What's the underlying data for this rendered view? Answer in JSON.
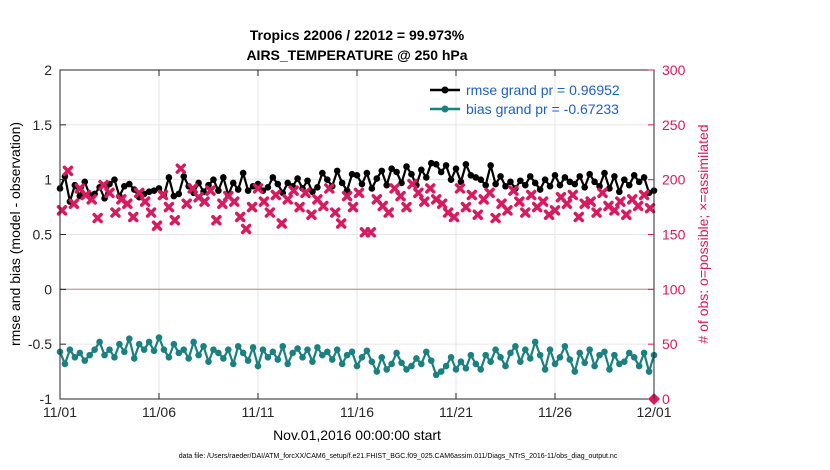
{
  "chart_data": {
    "type": "line",
    "title": "Tropics 22006 / 22012 = 99.973%",
    "subtitle": "AIRS_TEMPERATURE @ 250 hPa",
    "xlabel": "Nov.01,2016 00:00:00 start",
    "ylabel": "rmse and bias (model - observation)",
    "ylabel_right": "# of obs: o=possible; ×=assimilated",
    "x_tick_labels": [
      "11/01",
      "11/06",
      "11/11",
      "11/16",
      "11/21",
      "11/26",
      "12/01"
    ],
    "x_tick_values": [
      0,
      5,
      10,
      15,
      20,
      25,
      30
    ],
    "xlim": [
      0,
      30
    ],
    "ylim": [
      -1,
      2
    ],
    "y_ticks": [
      -1,
      -0.5,
      0,
      0.5,
      1,
      1.5,
      2
    ],
    "y_tick_labels": [
      "-1",
      "-0.5",
      "0",
      "0.5",
      "1",
      "1.5",
      "2"
    ],
    "ylim_right": [
      0,
      300
    ],
    "y2_ticks": [
      0,
      50,
      100,
      150,
      200,
      250,
      300
    ],
    "y2_tick_labels": [
      "0",
      "50",
      "100",
      "150",
      "200",
      "250",
      "300"
    ],
    "series": [
      {
        "name": "rmse",
        "legend": "rmse grand pr = 0.96952",
        "color": "#000000",
        "axis": "left",
        "x": [
          0,
          0.25,
          0.5,
          0.75,
          1,
          1.25,
          1.5,
          1.75,
          2,
          2.25,
          2.5,
          2.75,
          3,
          3.25,
          3.5,
          3.75,
          4,
          4.25,
          4.5,
          4.75,
          5,
          5.25,
          5.5,
          5.75,
          6,
          6.25,
          6.5,
          6.75,
          7,
          7.25,
          7.5,
          7.75,
          8,
          8.25,
          8.5,
          8.75,
          9,
          9.25,
          9.5,
          9.75,
          10,
          10.25,
          10.5,
          10.75,
          11,
          11.25,
          11.5,
          11.75,
          12,
          12.25,
          12.5,
          12.75,
          13,
          13.25,
          13.5,
          13.75,
          14,
          14.25,
          14.5,
          14.75,
          15,
          15.25,
          15.5,
          15.75,
          16,
          16.25,
          16.5,
          16.75,
          17,
          17.25,
          17.5,
          17.75,
          18,
          18.25,
          18.5,
          18.75,
          19,
          19.25,
          19.5,
          19.75,
          20,
          20.25,
          20.5,
          20.75,
          21,
          21.25,
          21.5,
          21.75,
          22,
          22.25,
          22.5,
          22.75,
          23,
          23.25,
          23.5,
          23.75,
          24,
          24.25,
          24.5,
          24.75,
          25,
          25.25,
          25.5,
          25.75,
          26,
          26.25,
          26.5,
          26.75,
          27,
          27.25,
          27.5,
          27.75,
          28,
          28.25,
          28.5,
          28.75,
          29,
          29.25,
          29.5,
          29.75,
          30
        ],
        "values": [
          0.92,
          1.03,
          0.8,
          0.95,
          0.85,
          0.98,
          0.86,
          0.87,
          0.93,
          0.83,
          0.96,
          1.0,
          0.85,
          0.94,
          0.96,
          0.91,
          0.84,
          0.87,
          0.89,
          0.9,
          0.92,
          0.86,
          1.02,
          0.85,
          0.87,
          1.03,
          0.94,
          0.88,
          0.97,
          0.89,
          0.95,
          1.0,
          0.9,
          1.02,
          0.86,
          0.97,
          0.91,
          1.06,
          0.9,
          0.94,
          0.96,
          0.9,
          0.93,
          1.02,
          0.96,
          0.88,
          0.97,
          0.94,
          1.01,
          0.92,
          0.99,
          0.89,
          0.93,
          1.06,
          1.0,
          0.94,
          1.08,
          0.97,
          0.9,
          1.05,
          1.04,
          0.96,
          1.06,
          0.92,
          1.01,
          1.08,
          0.95,
          1.1,
          1.07,
          0.97,
          1.12,
          1.05,
          0.95,
          1.09,
          1.02,
          1.15,
          1.14,
          1.07,
          1.13,
          1.0,
          1.1,
          0.98,
          1.14,
          1.04,
          1.02,
          1.0,
          0.95,
          1.13,
          0.96,
          1.03,
          0.94,
          0.98,
          0.92,
          0.99,
          0.95,
          1.03,
          0.97,
          0.91,
          1.0,
          0.94,
          1.04,
          0.95,
          1.02,
          0.98,
          0.96,
          1.03,
          0.93,
          1.05,
          0.98,
          0.94,
          1.06,
          0.92,
          1.03,
          0.89,
          1.0,
          0.95,
          1.04,
          0.98,
          1.02,
          0.88,
          0.9
        ],
        "marker": "filled-circle"
      },
      {
        "name": "bias",
        "legend": "bias grand pr = -0.67233",
        "color": "#1a8080",
        "axis": "left",
        "x": [
          0,
          0.25,
          0.5,
          0.75,
          1,
          1.25,
          1.5,
          1.75,
          2,
          2.25,
          2.5,
          2.75,
          3,
          3.25,
          3.5,
          3.75,
          4,
          4.25,
          4.5,
          4.75,
          5,
          5.25,
          5.5,
          5.75,
          6,
          6.25,
          6.5,
          6.75,
          7,
          7.25,
          7.5,
          7.75,
          8,
          8.25,
          8.5,
          8.75,
          9,
          9.25,
          9.5,
          9.75,
          10,
          10.25,
          10.5,
          10.75,
          11,
          11.25,
          11.5,
          11.75,
          12,
          12.25,
          12.5,
          12.75,
          13,
          13.25,
          13.5,
          13.75,
          14,
          14.25,
          14.5,
          14.75,
          15,
          15.25,
          15.5,
          15.75,
          16,
          16.25,
          16.5,
          16.75,
          17,
          17.25,
          17.5,
          17.75,
          18,
          18.25,
          18.5,
          18.75,
          19,
          19.25,
          19.5,
          19.75,
          20,
          20.25,
          20.5,
          20.75,
          21,
          21.25,
          21.5,
          21.75,
          22,
          22.25,
          22.5,
          22.75,
          23,
          23.25,
          23.5,
          23.75,
          24,
          24.25,
          24.5,
          24.75,
          25,
          25.25,
          25.5,
          25.75,
          26,
          26.25,
          26.5,
          26.75,
          27,
          27.25,
          27.5,
          27.75,
          28,
          28.25,
          28.5,
          28.75,
          29,
          29.25,
          29.5,
          29.75,
          30
        ],
        "values": [
          -0.57,
          -0.68,
          -0.55,
          -0.62,
          -0.58,
          -0.65,
          -0.6,
          -0.55,
          -0.48,
          -0.6,
          -0.55,
          -0.62,
          -0.5,
          -0.57,
          -0.45,
          -0.63,
          -0.5,
          -0.55,
          -0.48,
          -0.56,
          -0.44,
          -0.55,
          -0.62,
          -0.5,
          -0.58,
          -0.55,
          -0.63,
          -0.48,
          -0.6,
          -0.52,
          -0.66,
          -0.55,
          -0.58,
          -0.63,
          -0.55,
          -0.68,
          -0.52,
          -0.58,
          -0.65,
          -0.53,
          -0.7,
          -0.55,
          -0.62,
          -0.57,
          -0.64,
          -0.52,
          -0.68,
          -0.58,
          -0.54,
          -0.62,
          -0.55,
          -0.66,
          -0.53,
          -0.6,
          -0.57,
          -0.64,
          -0.55,
          -0.68,
          -0.6,
          -0.57,
          -0.7,
          -0.62,
          -0.56,
          -0.66,
          -0.75,
          -0.62,
          -0.73,
          -0.68,
          -0.58,
          -0.67,
          -0.73,
          -0.7,
          -0.63,
          -0.68,
          -0.57,
          -0.65,
          -0.78,
          -0.75,
          -0.7,
          -0.62,
          -0.73,
          -0.66,
          -0.72,
          -0.6,
          -0.68,
          -0.73,
          -0.6,
          -0.66,
          -0.55,
          -0.62,
          -0.7,
          -0.58,
          -0.52,
          -0.66,
          -0.55,
          -0.63,
          -0.48,
          -0.6,
          -0.73,
          -0.55,
          -0.68,
          -0.62,
          -0.52,
          -0.64,
          -0.75,
          -0.58,
          -0.67,
          -0.55,
          -0.7,
          -0.6,
          -0.57,
          -0.73,
          -0.6,
          -0.68,
          -0.66,
          -0.58,
          -0.62,
          -0.7,
          -0.58,
          -0.75,
          -0.6
        ],
        "marker": "filled-circle"
      },
      {
        "name": "nobs_assimilated",
        "color": "#d81b60",
        "axis": "right",
        "x": [
          0.1,
          0.4,
          0.7,
          1.0,
          1.3,
          1.6,
          1.9,
          2.2,
          2.5,
          2.8,
          3.1,
          3.4,
          3.7,
          4.0,
          4.3,
          4.6,
          4.9,
          5.2,
          5.5,
          5.8,
          6.1,
          6.4,
          6.7,
          7.0,
          7.3,
          7.6,
          7.9,
          8.2,
          8.5,
          8.8,
          9.1,
          9.4,
          9.7,
          10.0,
          10.3,
          10.6,
          10.9,
          11.2,
          11.5,
          11.8,
          12.1,
          12.4,
          12.7,
          13.0,
          13.3,
          13.6,
          13.9,
          14.2,
          14.5,
          14.8,
          15.1,
          15.4,
          15.7,
          16.0,
          16.3,
          16.6,
          16.9,
          17.2,
          17.5,
          17.8,
          18.1,
          18.4,
          18.7,
          19.0,
          19.3,
          19.6,
          19.9,
          20.2,
          20.5,
          20.8,
          21.1,
          21.4,
          21.7,
          22.0,
          22.3,
          22.6,
          22.9,
          23.2,
          23.5,
          23.8,
          24.1,
          24.4,
          24.7,
          25.0,
          25.3,
          25.6,
          25.9,
          26.2,
          26.5,
          26.8,
          27.1,
          27.4,
          27.7,
          28.0,
          28.3,
          28.6,
          28.9,
          29.2,
          29.5,
          29.8
        ],
        "values": [
          172,
          208,
          178,
          192,
          186,
          182,
          165,
          195,
          188,
          170,
          182,
          178,
          166,
          188,
          180,
          170,
          158,
          186,
          175,
          163,
          210,
          178,
          192,
          184,
          180,
          190,
          163,
          178,
          185,
          180,
          166,
          155,
          175,
          192,
          180,
          170,
          186,
          160,
          182,
          190,
          175,
          188,
          168,
          182,
          176,
          192,
          170,
          160,
          185,
          175,
          188,
          152,
          152,
          182,
          176,
          170,
          192,
          185,
          175,
          196,
          188,
          180,
          192,
          182,
          178,
          170,
          166,
          192,
          175,
          186,
          168,
          182,
          188,
          165,
          178,
          172,
          190,
          180,
          170,
          186,
          175,
          180,
          168,
          172,
          184,
          178,
          186,
          166,
          178,
          180,
          170,
          188,
          176,
          172,
          180,
          168,
          182,
          176,
          186,
          174
        ],
        "marker": "cross"
      }
    ],
    "footer": "data file: /Users/raeder/DAI/ATM_forcXX/CAM6_setup/f.e21.FHIST_BGC.f09_025.CAM6assim.011/Diags_NTrS_2016-11/obs_diag_output.nc"
  }
}
